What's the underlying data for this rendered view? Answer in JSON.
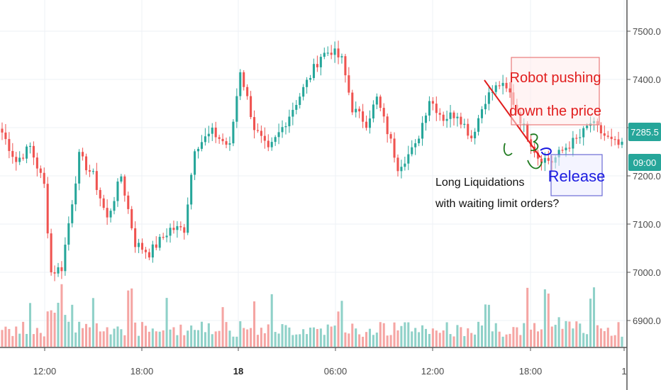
{
  "chart_data": {
    "type": "candlestick",
    "y_axis": {
      "ticks": [
        "7500.0",
        "7400.0",
        "7300.0",
        "7200.0",
        "7100.0",
        "7000.0",
        "6900.0"
      ],
      "range": [
        6820,
        7560
      ],
      "position": "right"
    },
    "x_axis": {
      "labels": [
        "12:00",
        "18:00",
        "18",
        "06:00",
        "12:00",
        "18:00",
        "1"
      ],
      "bold_label": "18"
    },
    "price_tag": {
      "value": "7285.5",
      "color": "#26a69a"
    },
    "time_tag": {
      "value": "09:00",
      "color": "#26a69a"
    },
    "colors": {
      "up": "#26a69a",
      "down": "#ef5350",
      "up_volume": "#8fd1c8",
      "down_volume": "#f5a5a3"
    },
    "grid": true,
    "anchors": [
      [
        0,
        7290
      ],
      [
        4,
        7230
      ],
      [
        8,
        7260
      ],
      [
        12,
        7180
      ],
      [
        14,
        7000
      ],
      [
        17,
        7010
      ],
      [
        22,
        7240
      ],
      [
        26,
        7200
      ],
      [
        30,
        7110
      ],
      [
        34,
        7200
      ],
      [
        38,
        7060
      ],
      [
        42,
        7040
      ],
      [
        48,
        7090
      ],
      [
        52,
        7090
      ],
      [
        55,
        7260
      ],
      [
        60,
        7290
      ],
      [
        65,
        7260
      ],
      [
        68,
        7420
      ],
      [
        72,
        7300
      ],
      [
        76,
        7250
      ],
      [
        80,
        7300
      ],
      [
        86,
        7380
      ],
      [
        91,
        7450
      ],
      [
        94,
        7460
      ],
      [
        97,
        7440
      ],
      [
        100,
        7340
      ],
      [
        104,
        7310
      ],
      [
        107,
        7360
      ],
      [
        111,
        7270
      ],
      [
        113,
        7220
      ],
      [
        118,
        7260
      ],
      [
        122,
        7360
      ],
      [
        126,
        7320
      ],
      [
        130,
        7330
      ],
      [
        134,
        7280
      ],
      [
        138,
        7360
      ],
      [
        142,
        7390
      ],
      [
        145,
        7370
      ],
      [
        149,
        7300
      ],
      [
        153,
        7240
      ],
      [
        157,
        7230
      ],
      [
        161,
        7260
      ],
      [
        165,
        7280
      ],
      [
        168,
        7310
      ],
      [
        171,
        7290
      ],
      [
        174,
        7270
      ],
      [
        177,
        7260
      ]
    ],
    "annotations": {
      "robot_lines": [
        "Robot pushing",
        "down the price"
      ],
      "release": "Release",
      "liquidation_lines": [
        "Long Liquidations",
        "with waiting limit orders?"
      ]
    }
  }
}
